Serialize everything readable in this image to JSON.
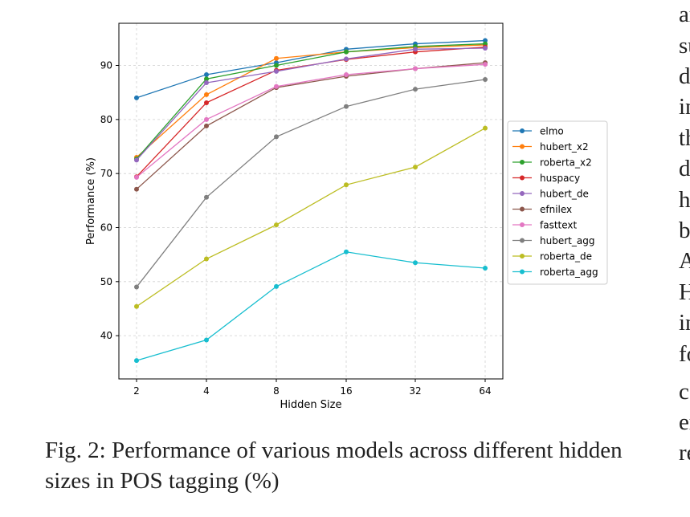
{
  "chart_data": {
    "type": "line",
    "title": "",
    "xlabel": "Hidden Size",
    "ylabel": "Performance (%)",
    "categories": [
      "2",
      "4",
      "8",
      "16",
      "32",
      "64"
    ],
    "y_ticks": [
      "40",
      "50",
      "60",
      "70",
      "80",
      "90"
    ],
    "ylim": [
      32,
      97.8
    ],
    "grid": true,
    "grid_style": "dashed",
    "legend_position": "right",
    "series": [
      {
        "name": "elmo",
        "color": "#1f77b4",
        "values": [
          84.0,
          88.3,
          90.5,
          93.0,
          94.0,
          94.6
        ]
      },
      {
        "name": "hubert_x2",
        "color": "#ff7f0e",
        "values": [
          73.0,
          84.6,
          91.3,
          92.5,
          93.3,
          93.8
        ]
      },
      {
        "name": "roberta_x2",
        "color": "#2ca02c",
        "values": [
          72.7,
          87.5,
          90.0,
          92.5,
          93.5,
          94.0
        ]
      },
      {
        "name": "huspacy",
        "color": "#d62728",
        "values": [
          69.4,
          83.1,
          89.1,
          91.1,
          92.5,
          93.4
        ]
      },
      {
        "name": "hubert_de",
        "color": "#9467bd",
        "values": [
          72.5,
          86.8,
          88.9,
          91.2,
          93.0,
          93.2
        ]
      },
      {
        "name": "efnilex",
        "color": "#8c564b",
        "values": [
          67.1,
          78.8,
          85.9,
          88.0,
          89.4,
          90.5
        ]
      },
      {
        "name": "fasttext",
        "color": "#e377c2",
        "values": [
          69.3,
          80.0,
          86.1,
          88.3,
          89.4,
          90.2
        ]
      },
      {
        "name": "hubert_agg",
        "color": "#7f7f7f",
        "values": [
          49.0,
          65.6,
          76.8,
          82.4,
          85.6,
          87.4
        ]
      },
      {
        "name": "roberta_de",
        "color": "#bcbd22",
        "values": [
          45.4,
          54.2,
          60.5,
          67.9,
          71.2,
          78.4
        ]
      },
      {
        "name": "roberta_agg",
        "color": "#17becf",
        "values": [
          35.4,
          39.2,
          49.1,
          55.5,
          53.5,
          52.5
        ]
      }
    ]
  },
  "caption": "Fig. 2: Performance of various models across different hidden sizes in POS tagging (%)",
  "side_text": [
    "ar",
    "su",
    "d",
    "in",
    "th",
    "d",
    "h",
    "b",
    "A",
    "H",
    "in",
    "fo",
    "co",
    "er",
    "re"
  ]
}
